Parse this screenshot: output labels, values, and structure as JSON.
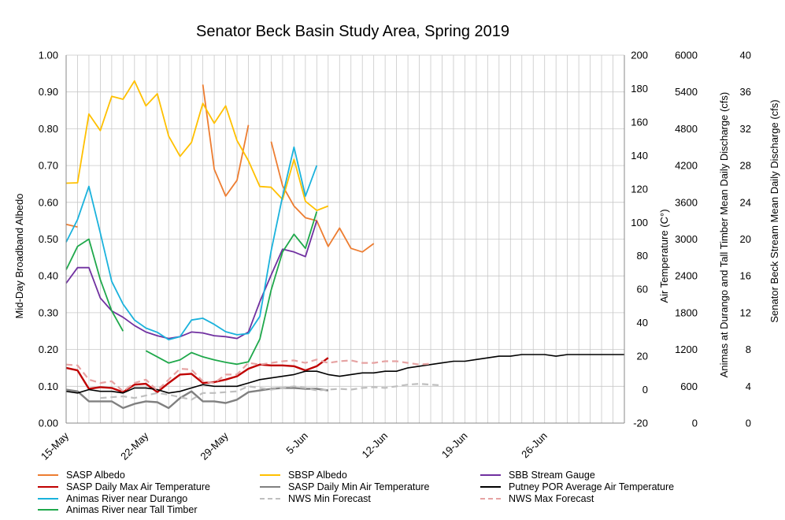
{
  "chart_data": {
    "type": "line",
    "title": "Senator Beck Basin Study Area, Spring 2019",
    "xlabel": "",
    "x_tick_labels": [
      "15-May",
      "22-May",
      "29-May",
      "5-Jun",
      "12-Jun",
      "19-Jun",
      "26-Jun"
    ],
    "x_tick_days": [
      0,
      7,
      14,
      21,
      28,
      35,
      42
    ],
    "x_range_days": [
      0,
      49
    ],
    "axes": {
      "albedo": {
        "label": "Mid-Day Broadband Albedo",
        "ticks": [
          "0.00",
          "0.10",
          "0.20",
          "0.30",
          "0.40",
          "0.50",
          "0.60",
          "0.70",
          "0.80",
          "0.90",
          "1.00"
        ],
        "range": [
          0,
          1
        ]
      },
      "temperature": {
        "label": "Air Temperature (C°)",
        "ticks": [
          "-20",
          "0",
          "20",
          "40",
          "60",
          "80",
          "100",
          "120",
          "140",
          "160",
          "180",
          "200"
        ],
        "range": [
          -20,
          200
        ]
      },
      "discharge_animas": {
        "label": "Animas at Durango and Tall Timber Mean Daily Discharge (cfs)",
        "ticks": [
          "0",
          "600",
          "1200",
          "1800",
          "2400",
          "3000",
          "3600",
          "4200",
          "4800",
          "5400",
          "6000"
        ],
        "range": [
          0,
          6000
        ]
      },
      "discharge_sbb": {
        "label": "Senator Beck Stream Mean Daily Discharge (cfs)",
        "ticks": [
          "0",
          "4",
          "8",
          "12",
          "16",
          "20",
          "24",
          "28",
          "32",
          "36",
          "40"
        ],
        "range": [
          0,
          40
        ]
      }
    },
    "grid": true,
    "legend_position": "bottom",
    "series": [
      {
        "name": "SASP Albedo",
        "axis": "albedo",
        "color": "#ED7D31",
        "width": 1.8,
        "dash": "",
        "points": [
          [
            0,
            0.54
          ],
          [
            1,
            0.533
          ],
          null,
          [
            12,
            0.92
          ],
          [
            13,
            0.69
          ],
          [
            14,
            0.617
          ],
          [
            15,
            0.66
          ],
          [
            16,
            0.81
          ],
          null,
          [
            18,
            0.765
          ],
          [
            19,
            0.645
          ],
          [
            20,
            0.59
          ],
          [
            21,
            0.558
          ],
          [
            22,
            0.55
          ],
          [
            23,
            0.48
          ],
          [
            24,
            0.53
          ],
          [
            25,
            0.475
          ],
          [
            26,
            0.465
          ],
          [
            27,
            0.488
          ]
        ]
      },
      {
        "name": "SBSP Albedo",
        "axis": "albedo",
        "color": "#FFC000",
        "width": 1.8,
        "dash": "",
        "points": [
          [
            0,
            0.652
          ],
          [
            1,
            0.653
          ],
          [
            2,
            0.84
          ],
          [
            3,
            0.795
          ],
          [
            4,
            0.888
          ],
          [
            5,
            0.88
          ],
          [
            6,
            0.93
          ],
          [
            7,
            0.862
          ],
          [
            8,
            0.895
          ],
          [
            9,
            0.78
          ],
          [
            10,
            0.725
          ],
          [
            11,
            0.763
          ],
          [
            12,
            0.869
          ],
          [
            13,
            0.815
          ],
          [
            14,
            0.862
          ],
          [
            15,
            0.768
          ],
          [
            16,
            0.713
          ],
          [
            17,
            0.643
          ],
          [
            18,
            0.641
          ],
          [
            19,
            0.608
          ],
          [
            20,
            0.717
          ],
          [
            21,
            0.603
          ],
          [
            22,
            0.578
          ],
          [
            23,
            0.59
          ]
        ]
      },
      {
        "name": "SBB Stream Gauge",
        "axis": "discharge_sbb",
        "color": "#7030A0",
        "width": 1.8,
        "dash": "",
        "points": [
          [
            0,
            15.2
          ],
          [
            1,
            16.9
          ],
          [
            2,
            16.9
          ],
          [
            3,
            13.6
          ],
          [
            4,
            12.2
          ],
          [
            5,
            11.5
          ],
          [
            6,
            10.6
          ],
          [
            7,
            9.9
          ],
          [
            8,
            9.5
          ],
          [
            9,
            9.2
          ],
          [
            10,
            9.4
          ],
          [
            11,
            9.9
          ],
          [
            12,
            9.8
          ],
          [
            13,
            9.5
          ],
          [
            14,
            9.4
          ],
          [
            15,
            9.2
          ],
          [
            16,
            9.9
          ],
          [
            17,
            13.2
          ],
          [
            18,
            16.1
          ],
          [
            19,
            18.9
          ],
          [
            20,
            18.6
          ],
          [
            21,
            18.1
          ],
          [
            22,
            22.0
          ]
        ]
      },
      {
        "name": "SASP Daily Max Air Temperature",
        "axis": "temperature",
        "color": "#C00000",
        "width": 2.4,
        "dash": "",
        "points": [
          [
            0,
            13
          ],
          [
            1,
            11.5
          ],
          [
            2,
            0.5
          ],
          [
            3,
            1.5
          ],
          [
            4,
            1
          ],
          [
            5,
            -1.5
          ],
          [
            6,
            3
          ],
          [
            7,
            3.5
          ],
          [
            8,
            -1.5
          ],
          [
            9,
            4
          ],
          [
            10,
            9
          ],
          [
            11,
            9.5
          ],
          [
            12,
            4
          ],
          [
            13,
            4.5
          ],
          [
            14,
            6
          ],
          [
            15,
            8
          ],
          [
            16,
            12.5
          ],
          [
            17,
            15
          ],
          [
            18,
            14.5
          ],
          [
            19,
            14.5
          ],
          [
            20,
            14
          ],
          [
            21,
            11.5
          ],
          [
            22,
            14
          ],
          [
            23,
            19
          ]
        ]
      },
      {
        "name": "SASP Daily Min Air Temperature",
        "axis": "temperature",
        "color": "#808080",
        "width": 2.4,
        "dash": "",
        "points": [
          [
            0,
            0
          ],
          [
            1,
            -1
          ],
          [
            2,
            -7
          ],
          [
            3,
            -7
          ],
          [
            4,
            -7
          ],
          [
            5,
            -11
          ],
          [
            6,
            -8.5
          ],
          [
            7,
            -7
          ],
          [
            8,
            -7.5
          ],
          [
            9,
            -11
          ],
          [
            10,
            -5
          ],
          [
            11,
            -1
          ],
          [
            12,
            -7
          ],
          [
            13,
            -7
          ],
          [
            14,
            -8
          ],
          [
            15,
            -6
          ],
          [
            16,
            -1.5
          ],
          [
            17,
            -0.5
          ],
          [
            18,
            0.5
          ],
          [
            19,
            1
          ],
          [
            20,
            1
          ],
          [
            21,
            0.5
          ],
          [
            22,
            0.5
          ],
          [
            23,
            -0.5
          ]
        ]
      },
      {
        "name": "Putney POR Average Air Temperature",
        "axis": "temperature",
        "color": "#000000",
        "width": 1.6,
        "dash": "",
        "points": [
          [
            0,
            -1
          ],
          [
            1,
            -2
          ],
          [
            2,
            0
          ],
          [
            3,
            -1
          ],
          [
            4,
            -1
          ],
          [
            5,
            -2
          ],
          [
            6,
            1
          ],
          [
            7,
            1
          ],
          [
            8,
            0
          ],
          [
            9,
            -2
          ],
          [
            10,
            -1
          ],
          [
            11,
            1
          ],
          [
            12,
            3
          ],
          [
            13,
            2
          ],
          [
            14,
            2
          ],
          [
            15,
            2
          ],
          [
            16,
            4
          ],
          [
            17,
            6
          ],
          [
            18,
            7
          ],
          [
            19,
            8
          ],
          [
            20,
            9
          ],
          [
            21,
            11
          ],
          [
            22,
            11
          ],
          [
            23,
            9
          ],
          [
            24,
            8
          ],
          [
            25,
            9
          ],
          [
            26,
            10
          ],
          [
            27,
            10
          ],
          [
            28,
            11
          ],
          [
            29,
            11
          ],
          [
            30,
            13
          ],
          [
            31,
            14
          ],
          [
            32,
            15
          ],
          [
            33,
            16
          ],
          [
            34,
            17
          ],
          [
            35,
            17
          ],
          [
            36,
            18
          ],
          [
            37,
            19
          ],
          [
            38,
            20
          ],
          [
            39,
            20
          ],
          [
            40,
            21
          ],
          [
            41,
            21
          ],
          [
            42,
            21
          ],
          [
            43,
            20
          ],
          [
            44,
            21
          ],
          [
            45,
            21
          ],
          [
            46,
            21
          ],
          [
            47,
            21
          ],
          [
            48,
            21
          ],
          [
            49,
            21
          ]
        ]
      },
      {
        "name": "Animas River near Durango",
        "axis": "discharge_animas",
        "color": "#1AB2DC",
        "width": 1.8,
        "dash": "",
        "points": [
          [
            0,
            2950
          ],
          [
            1,
            3320
          ],
          [
            2,
            3860
          ],
          [
            3,
            3100
          ],
          [
            4,
            2310
          ],
          [
            5,
            1940
          ],
          [
            6,
            1680
          ],
          [
            7,
            1550
          ],
          [
            8,
            1480
          ],
          [
            9,
            1360
          ],
          [
            10,
            1410
          ],
          [
            11,
            1680
          ],
          [
            12,
            1710
          ],
          [
            13,
            1610
          ],
          [
            14,
            1490
          ],
          [
            15,
            1440
          ],
          [
            16,
            1460
          ],
          [
            17,
            1740
          ],
          [
            18,
            2810
          ],
          [
            19,
            3700
          ],
          [
            20,
            4500
          ],
          [
            21,
            3700
          ],
          [
            22,
            4200
          ]
        ]
      },
      {
        "name": "NWS Min Forecast",
        "axis": "temperature",
        "color": "#BFBFBF",
        "width": 2.2,
        "dash": "8,5",
        "points": [
          [
            3,
            -5
          ],
          [
            5,
            -4
          ],
          [
            6,
            -5
          ],
          [
            8,
            -2
          ],
          [
            9,
            -3
          ],
          [
            11,
            -6
          ],
          [
            12,
            -2
          ],
          [
            13,
            -2
          ],
          [
            15,
            -1
          ],
          [
            16,
            2
          ],
          [
            17,
            1
          ],
          [
            18,
            0
          ],
          [
            19,
            1
          ],
          [
            20,
            2
          ],
          [
            21,
            1
          ],
          [
            22,
            -0.5
          ],
          [
            24,
            0.5
          ],
          [
            25,
            0
          ],
          [
            26,
            1
          ],
          [
            27,
            1.5
          ],
          [
            28,
            1
          ],
          [
            29,
            2
          ],
          [
            30,
            3
          ],
          [
            31,
            3.5
          ],
          [
            32,
            3
          ],
          [
            33,
            2.5
          ]
        ]
      },
      {
        "name": "NWS Max Forecast",
        "axis": "temperature",
        "color": "#E6A3A3",
        "width": 2.2,
        "dash": "8,5",
        "points": [
          [
            0,
            15
          ],
          [
            1,
            14.5
          ],
          [
            2,
            6
          ],
          [
            3,
            4
          ],
          [
            4,
            5
          ],
          [
            5,
            -1
          ],
          [
            6,
            4
          ],
          [
            7,
            6
          ],
          [
            8,
            -0.5
          ],
          [
            9,
            6
          ],
          [
            10,
            12.5
          ],
          [
            11,
            12
          ],
          [
            12,
            5
          ],
          [
            13,
            4
          ],
          [
            14,
            9
          ],
          [
            15,
            9
          ],
          [
            16,
            16
          ],
          [
            17,
            15
          ],
          [
            18,
            16
          ],
          [
            19,
            17
          ],
          [
            20,
            17.5
          ],
          [
            21,
            16
          ],
          [
            22,
            18
          ],
          [
            23,
            16
          ],
          [
            24,
            17
          ],
          [
            25,
            17.5
          ],
          [
            26,
            16
          ],
          [
            27,
            16
          ],
          [
            28,
            17
          ],
          [
            29,
            17
          ],
          [
            30,
            16
          ],
          [
            31,
            15
          ],
          [
            32,
            15.5
          ]
        ]
      },
      {
        "name": "Animas River near Tall Timber",
        "axis": "discharge_animas",
        "color": "#1FA84B",
        "width": 1.8,
        "dash": "",
        "points": [
          [
            0,
            2500
          ],
          [
            1,
            2880
          ],
          [
            2,
            3000
          ],
          [
            3,
            2340
          ],
          [
            4,
            1830
          ],
          [
            5,
            1500
          ],
          null,
          [
            7,
            1180
          ],
          [
            8,
            1080
          ],
          [
            9,
            980
          ],
          [
            10,
            1030
          ],
          [
            11,
            1150
          ],
          [
            12,
            1080
          ],
          [
            13,
            1030
          ],
          [
            14,
            990
          ],
          [
            15,
            960
          ],
          [
            16,
            1000
          ],
          [
            17,
            1370
          ],
          [
            18,
            2170
          ],
          [
            19,
            2790
          ],
          [
            20,
            3080
          ],
          [
            21,
            2850
          ],
          [
            22,
            3450
          ]
        ]
      }
    ],
    "legend_rows": [
      [
        "SASP Albedo",
        "SBSP Albedo",
        "SBB Stream Gauge"
      ],
      [
        "SASP Daily Max Air Temperature",
        "SASP Daily Min Air Temperature",
        "Putney POR Average Air Temperature"
      ],
      [
        "Animas River near Durango",
        "NWS Min Forecast",
        "NWS Max Forecast"
      ],
      [
        "Animas River near Tall Timber"
      ]
    ]
  }
}
